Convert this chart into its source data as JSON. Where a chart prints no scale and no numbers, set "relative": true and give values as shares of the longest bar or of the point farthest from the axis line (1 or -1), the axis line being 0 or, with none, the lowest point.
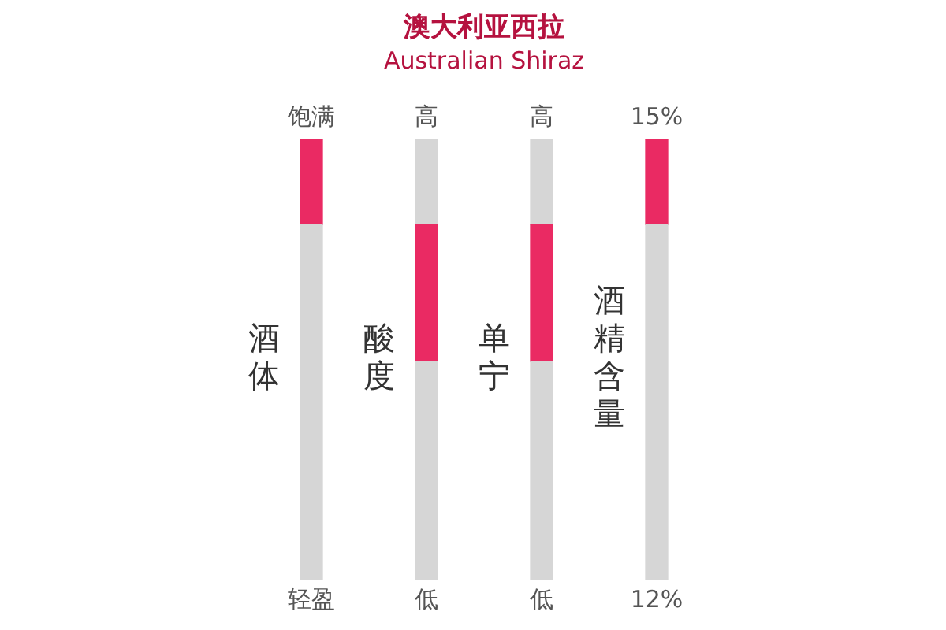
{
  "chart_data": {
    "type": "bar",
    "title": "澳大利亚西拉",
    "subtitle": "Australian Shiraz",
    "categories": [
      "酒体",
      "酸度",
      "单宁",
      "酒精含量"
    ],
    "stacked": true,
    "relative": true,
    "legend": false,
    "series": [
      {
        "color": "#d6d6d6",
        "values": [
          0.806,
          0.495,
          0.495,
          0.806
        ]
      },
      {
        "color": "#ea2a63",
        "values": [
          0.194,
          0.311,
          0.311,
          0.194
        ]
      },
      {
        "color": "#d6d6d6",
        "values": [
          0,
          0.194,
          0.194,
          0
        ]
      }
    ],
    "annotations": [
      "饱满",
      "轻盈",
      "高",
      "低",
      "高",
      "低",
      "15%",
      "12%"
    ]
  }
}
